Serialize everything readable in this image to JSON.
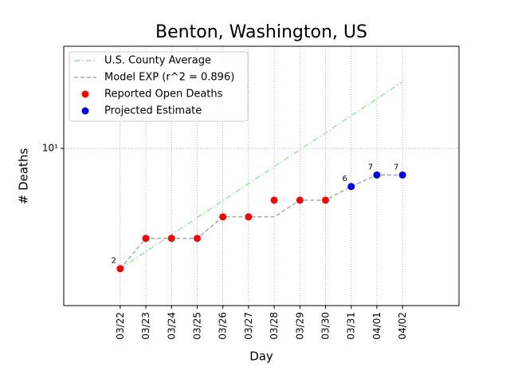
{
  "chart_data": {
    "type": "line",
    "title": "Benton, Washington, US",
    "xlabel": "Day",
    "ylabel": "# Deaths",
    "categories": [
      "03/22",
      "03/23",
      "03/24",
      "03/25",
      "03/26",
      "03/27",
      "03/28",
      "03/29",
      "03/30",
      "03/31",
      "04/01",
      "04/02"
    ],
    "xlim": [
      -2.2,
      13.2
    ],
    "ylim": [
      1.22,
      39.2
    ],
    "log_y": true,
    "yticks": [
      {
        "value": 10,
        "label": "10¹"
      }
    ],
    "grid": true,
    "legend": "upper left",
    "series": [
      {
        "name": "U.S. County Average",
        "color": "#90ee90",
        "linestyle": "dashdot",
        "values": [
          2.0,
          2.51,
          3.15,
          3.96,
          4.97,
          6.24,
          7.83,
          9.83,
          12.3,
          15.5,
          19.4,
          24.4
        ]
      },
      {
        "name": "Model EXP (r^2 = 0.896)",
        "color": "#a9a9a9",
        "linestyle": "dashed",
        "values": [
          2,
          3,
          3,
          3,
          4,
          4,
          4,
          5,
          5,
          6,
          7,
          7
        ]
      },
      {
        "name": "Reported Open Deaths",
        "color": "#ff0000",
        "marker": "circle",
        "values": [
          2,
          3,
          3,
          3,
          4,
          4,
          5,
          5,
          5,
          null,
          null,
          null
        ],
        "value_labels": [
          "2",
          null,
          null,
          null,
          null,
          null,
          null,
          null,
          null,
          null,
          null,
          null
        ]
      },
      {
        "name": "Projected Estimate",
        "color": "#0000ff",
        "marker": "circle",
        "values": [
          null,
          null,
          null,
          null,
          null,
          null,
          null,
          null,
          null,
          6,
          7,
          7
        ],
        "value_labels": [
          null,
          null,
          null,
          null,
          null,
          null,
          null,
          null,
          null,
          "6",
          "7",
          "7"
        ]
      }
    ]
  }
}
